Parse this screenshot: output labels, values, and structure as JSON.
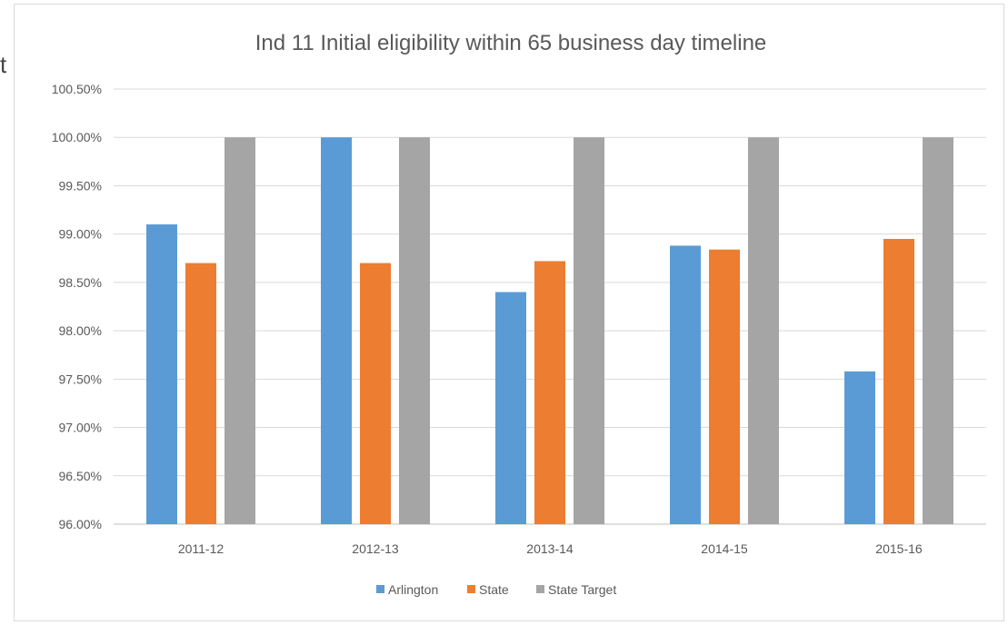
{
  "stray_glyph": "t",
  "chart_data": {
    "type": "bar",
    "title": "Ind 11 Initial eligibility within 65 business day timeline",
    "xlabel": "",
    "ylabel": "",
    "categories": [
      "2011-12",
      "2012-13",
      "2013-14",
      "2014-15",
      "2015-16"
    ],
    "series": [
      {
        "name": "Arlington",
        "color": "#5b9bd5",
        "values": [
          99.1,
          100.0,
          98.4,
          98.88,
          97.58
        ]
      },
      {
        "name": "State",
        "color": "#ed7d31",
        "values": [
          98.7,
          98.7,
          98.72,
          98.84,
          98.95
        ]
      },
      {
        "name": "State Target",
        "color": "#a5a5a5",
        "values": [
          100.0,
          100.0,
          100.0,
          100.0,
          100.0
        ]
      }
    ],
    "ylim": [
      96.0,
      100.5
    ],
    "yticks": [
      "96.00%",
      "96.50%",
      "97.00%",
      "97.50%",
      "98.00%",
      "98.50%",
      "99.00%",
      "99.50%",
      "100.00%",
      "100.50%"
    ],
    "grid": true,
    "legend_position": "bottom"
  }
}
